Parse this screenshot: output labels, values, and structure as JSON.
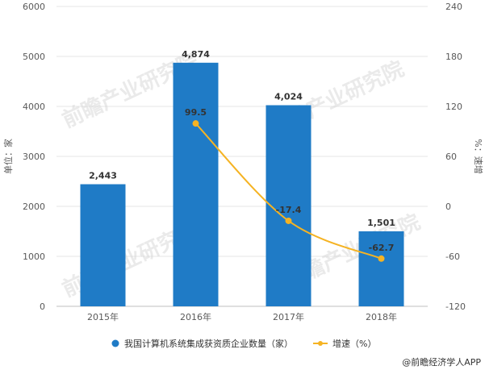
{
  "chart_data": {
    "type": "bar",
    "categories": [
      "2015年",
      "2016年",
      "2017年",
      "2018年"
    ],
    "series": [
      {
        "name": "我国计算机系统集成获资质企业数量（家）",
        "type": "bar",
        "axis": "left",
        "values": [
          2443,
          4874,
          4024,
          1501
        ],
        "labels": [
          "2,443",
          "4,874",
          "4,024",
          "1,501"
        ],
        "color": "#1f7bc6"
      },
      {
        "name": "增速（%）",
        "type": "line",
        "axis": "right",
        "values": [
          null,
          99.5,
          -17.4,
          -62.7
        ],
        "labels": [
          "",
          "99.5",
          "-17.4",
          "-62.7"
        ],
        "color": "#f5b323"
      }
    ],
    "ylabel": "单位：家",
    "y2label": "%：速增",
    "ylim": [
      0,
      6000
    ],
    "yticks": [
      0,
      1000,
      2000,
      3000,
      4000,
      5000,
      6000
    ],
    "y2lim": [
      -120,
      240
    ],
    "y2ticks": [
      -120,
      -60,
      0,
      60,
      120,
      180,
      240
    ],
    "grid": true,
    "legend": "bottom"
  },
  "watermark": "前瞻产业研究院",
  "source": "@前瞻经济学人APP"
}
